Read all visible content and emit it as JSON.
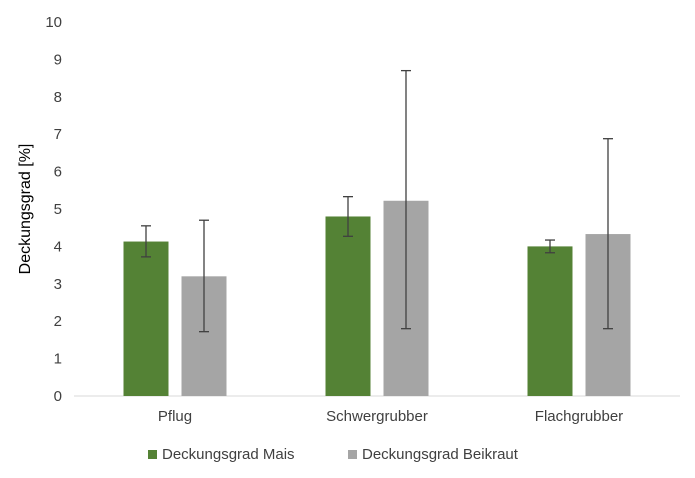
{
  "chart_data": {
    "type": "bar",
    "categories": [
      "Pflug",
      "Schwergrubber",
      "Flachgrubber"
    ],
    "series": [
      {
        "name": "Deckungsgrad Mais",
        "color": "#548235",
        "values": [
          4.13,
          4.8,
          4.0
        ],
        "error_low": [
          3.72,
          4.27,
          3.83
        ],
        "error_high": [
          4.55,
          5.33,
          4.17
        ]
      },
      {
        "name": "Deckungsgrad Beikraut",
        "color": "#a5a5a5",
        "values": [
          3.2,
          5.22,
          4.33
        ],
        "error_low": [
          1.72,
          1.8,
          1.8
        ],
        "error_high": [
          4.7,
          8.7,
          6.88
        ]
      }
    ],
    "ylabel": "Deckungsgrad [%]",
    "xlabel": "",
    "ylim": [
      0,
      10
    ],
    "yticks": [
      0,
      1,
      2,
      3,
      4,
      5,
      6,
      7,
      8,
      9,
      10
    ],
    "grid": false,
    "legend_position": "bottom"
  }
}
